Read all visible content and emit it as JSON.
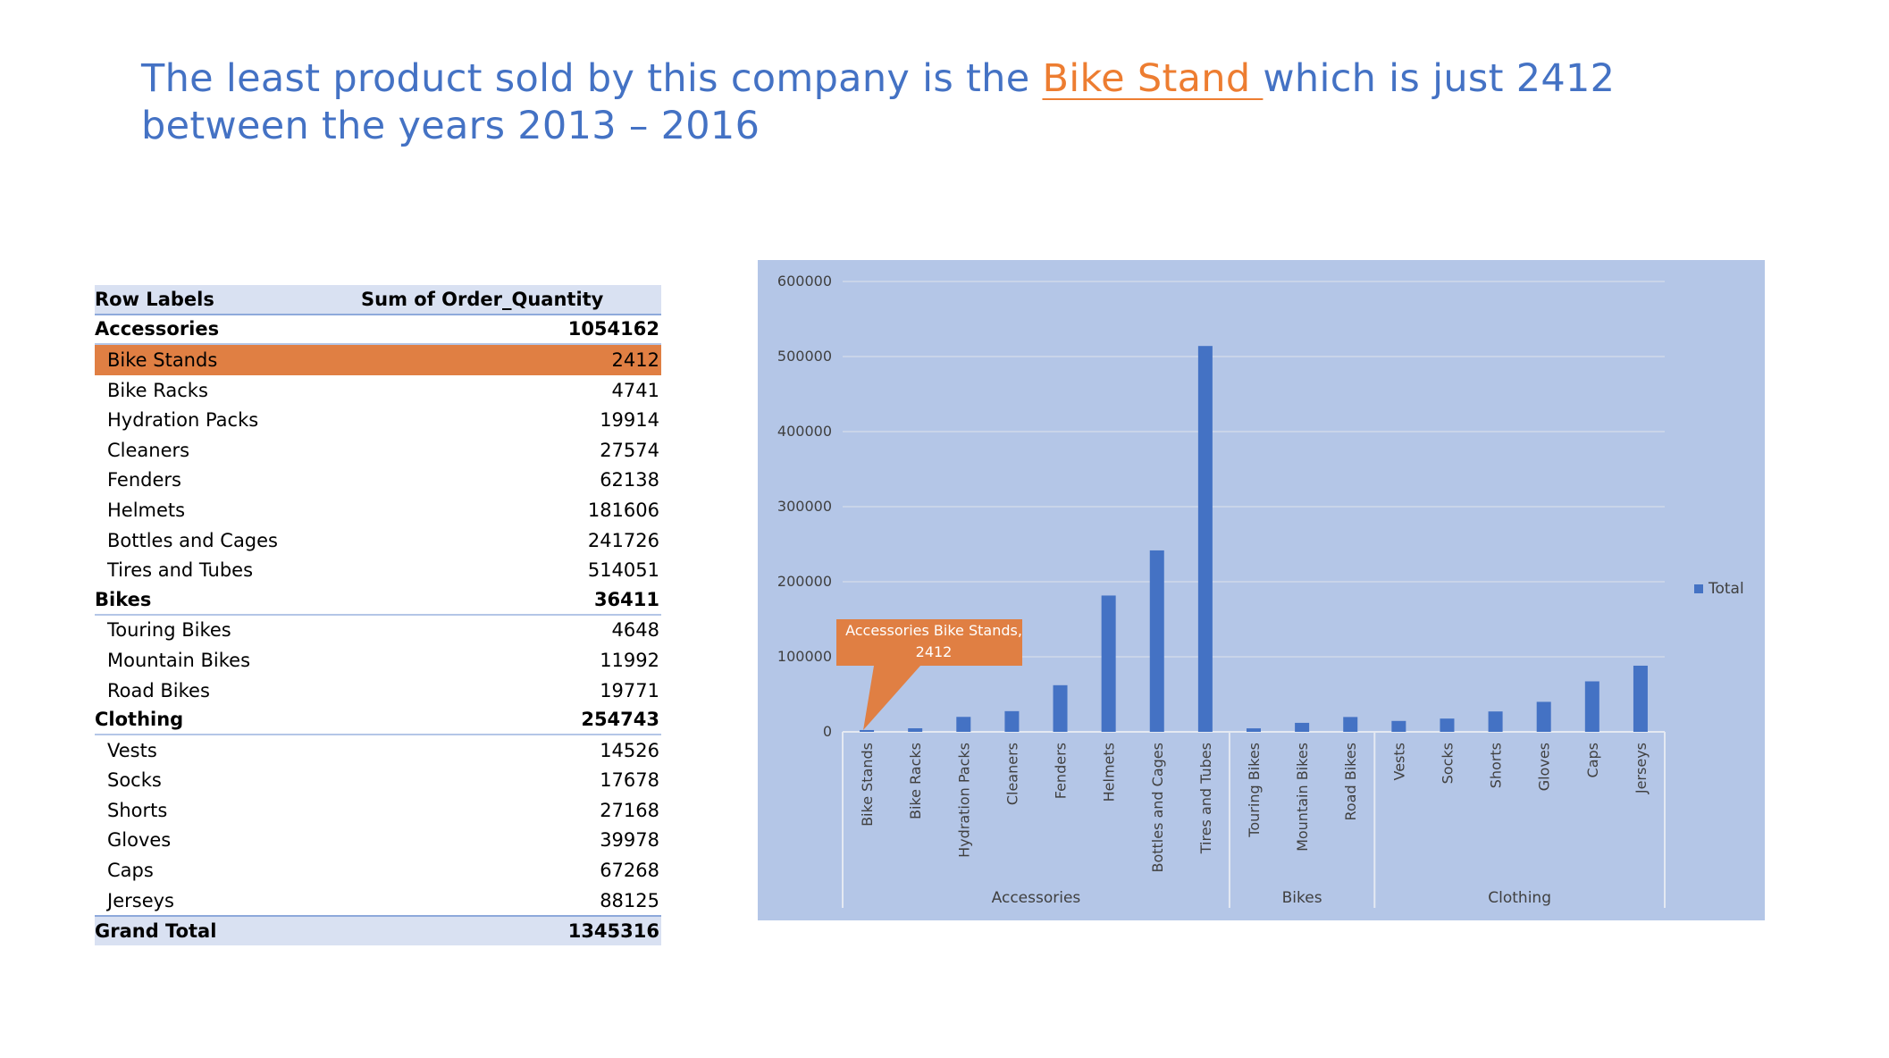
{
  "headline": {
    "before": "The least product sold by this company is the ",
    "highlight": "Bike Stand ",
    "after": "which is just 2412  between the years 2013 – 2016"
  },
  "colors": {
    "accent": "#4472c4",
    "highlight": "#ed7d31",
    "selected_row": "#e07f43",
    "chart_bg": "#b4c6e7"
  },
  "pivot": {
    "header_label": "Row Labels",
    "header_value": "Sum of Order_Quantity",
    "rows": [
      {
        "label": "Accessories",
        "value": "1054162",
        "kind": "group"
      },
      {
        "label": "Bike Stands",
        "value": "2412",
        "kind": "item",
        "selected": true
      },
      {
        "label": "Bike Racks",
        "value": "4741",
        "kind": "item"
      },
      {
        "label": "Hydration Packs",
        "value": "19914",
        "kind": "item"
      },
      {
        "label": "Cleaners",
        "value": "27574",
        "kind": "item"
      },
      {
        "label": "Fenders",
        "value": "62138",
        "kind": "item"
      },
      {
        "label": "Helmets",
        "value": "181606",
        "kind": "item"
      },
      {
        "label": "Bottles and Cages",
        "value": "241726",
        "kind": "item"
      },
      {
        "label": "Tires and Tubes",
        "value": "514051",
        "kind": "item"
      },
      {
        "label": "Bikes",
        "value": "36411",
        "kind": "group"
      },
      {
        "label": "Touring Bikes",
        "value": "4648",
        "kind": "item"
      },
      {
        "label": "Mountain Bikes",
        "value": "11992",
        "kind": "item"
      },
      {
        "label": "Road Bikes",
        "value": "19771",
        "kind": "item"
      },
      {
        "label": "Clothing",
        "value": "254743",
        "kind": "group"
      },
      {
        "label": "Vests",
        "value": "14526",
        "kind": "item"
      },
      {
        "label": "Socks",
        "value": "17678",
        "kind": "item"
      },
      {
        "label": "Shorts",
        "value": "27168",
        "kind": "item"
      },
      {
        "label": "Gloves",
        "value": "39978",
        "kind": "item"
      },
      {
        "label": "Caps",
        "value": "67268",
        "kind": "item"
      },
      {
        "label": "Jerseys",
        "value": "88125",
        "kind": "item"
      }
    ],
    "total_label": "Grand Total",
    "total_value": "1345316"
  },
  "chart_data": {
    "type": "bar",
    "groups": [
      {
        "name": "Accessories",
        "categories": [
          "Bike Stands",
          "Bike Racks",
          "Hydration Packs",
          "Cleaners",
          "Fenders",
          "Helmets",
          "Bottles and Cages",
          "Tires and Tubes"
        ]
      },
      {
        "name": "Bikes",
        "categories": [
          "Touring Bikes",
          "Mountain Bikes",
          "Road Bikes"
        ]
      },
      {
        "name": "Clothing",
        "categories": [
          "Vests",
          "Socks",
          "Shorts",
          "Gloves",
          "Caps",
          "Jerseys"
        ]
      }
    ],
    "categories": [
      "Bike Stands",
      "Bike Racks",
      "Hydration Packs",
      "Cleaners",
      "Fenders",
      "Helmets",
      "Bottles and Cages",
      "Tires and Tubes",
      "Touring Bikes",
      "Mountain Bikes",
      "Road Bikes",
      "Vests",
      "Socks",
      "Shorts",
      "Gloves",
      "Caps",
      "Jerseys"
    ],
    "series": [
      {
        "name": "Total",
        "values": [
          2412,
          4741,
          19914,
          27574,
          62138,
          181606,
          241726,
          514051,
          4648,
          11992,
          19771,
          14526,
          17678,
          27168,
          39978,
          67268,
          88125
        ],
        "color": "#4472c4"
      }
    ],
    "y_ticks": [
      "0",
      "100000",
      "200000",
      "300000",
      "400000",
      "500000",
      "600000"
    ],
    "ylim": [
      0,
      600000
    ],
    "grid": true,
    "legend": "right",
    "annotation": {
      "line1": "Accessories Bike Stands,",
      "line2": "2412",
      "target_category": "Bike Stands",
      "color": "#e07f43"
    }
  }
}
